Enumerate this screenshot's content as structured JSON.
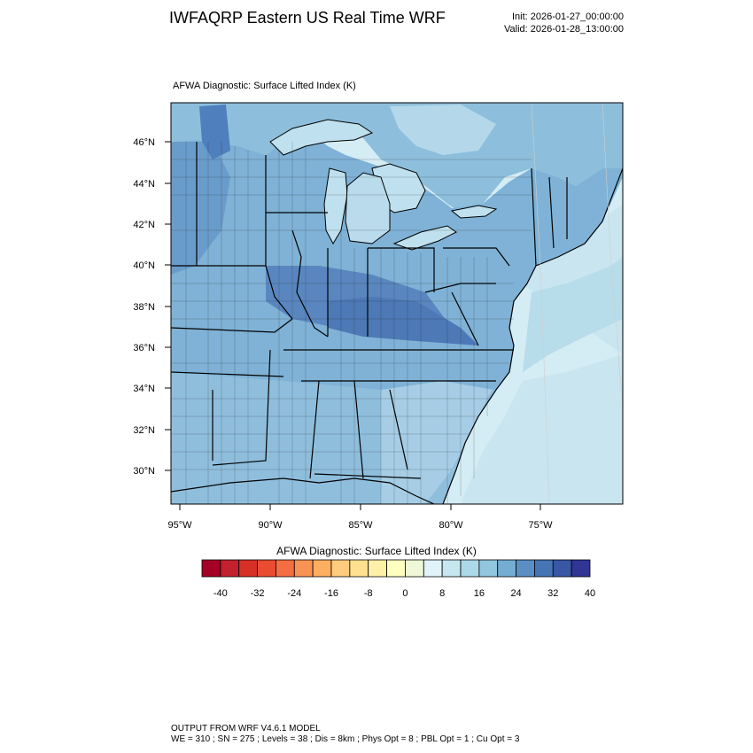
{
  "header": {
    "title": "IWFAQRP Eastern US Real Time WRF",
    "init": "Init: 2026-01-27_00:00:00",
    "valid": "Valid: 2026-01-28_13:00:00"
  },
  "map": {
    "field_label": "AFWA Diagnostic: Surface Lifted Index   (K)",
    "lat_ticks": [
      "46°N",
      "44°N",
      "42°N",
      "40°N",
      "38°N",
      "36°N",
      "34°N",
      "32°N",
      "30°N"
    ],
    "lon_ticks": [
      "95°W",
      "90°W",
      "85°W",
      "80°W",
      "75°W"
    ]
  },
  "colorbar": {
    "title": "AFWA Diagnostic: Surface Lifted Index  (K)",
    "ticks": [
      "-40",
      "-32",
      "-24",
      "-16",
      "-8",
      "0",
      "8",
      "16",
      "24",
      "32",
      "40"
    ],
    "colors": [
      "#a50026",
      "#c2212d",
      "#d73027",
      "#e94c32",
      "#f46d43",
      "#f99355",
      "#fdae61",
      "#fdcd7d",
      "#fee090",
      "#fff0a8",
      "#ffffbf",
      "#eef8d6",
      "#e0f3f8",
      "#c6e6f0",
      "#abd9e9",
      "#92c5de",
      "#74add1",
      "#5b8fc4",
      "#4575b4",
      "#3a57a6",
      "#313695"
    ]
  },
  "footer": {
    "line1": "OUTPUT FROM WRF V4.6.1 MODEL",
    "line2": "WE = 310 ; SN = 275 ; Levels = 38 ; Dis = 8km ; Phys Opt = 8 ; PBL Opt = 1 ; Cu Opt = 3"
  }
}
